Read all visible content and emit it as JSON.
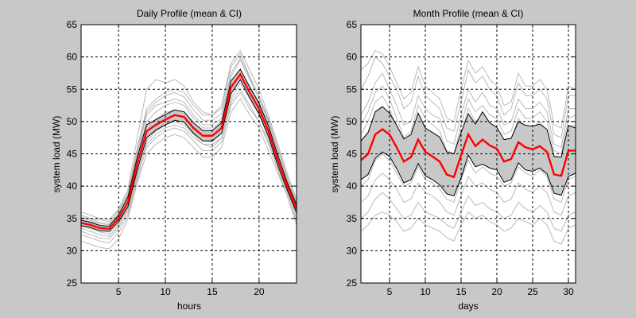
{
  "figure": {
    "background": "#c8c8c8"
  },
  "chart_data": [
    {
      "type": "line",
      "title": "Daily Profile (mean & CI)",
      "xlabel": "hours",
      "ylabel": "system load (MW)",
      "xlim": [
        1,
        24
      ],
      "ylim": [
        25,
        65
      ],
      "xticks": [
        5,
        10,
        15,
        20
      ],
      "yticks": [
        25,
        30,
        35,
        40,
        45,
        50,
        55,
        60,
        65
      ],
      "grid": true,
      "x": [
        1,
        2,
        3,
        4,
        5,
        6,
        7,
        8,
        9,
        10,
        11,
        12,
        13,
        14,
        15,
        16,
        17,
        18,
        19,
        20,
        21,
        22,
        23,
        24
      ],
      "series": [
        {
          "role": "mean",
          "color": "#ff0000",
          "values": [
            34.3,
            34.0,
            33.5,
            33.4,
            35.0,
            37.5,
            43.5,
            48.5,
            49.5,
            50.3,
            51.0,
            50.7,
            49.0,
            47.8,
            47.8,
            49.0,
            55.3,
            57.3,
            54.5,
            52.0,
            48.5,
            44.0,
            40.0,
            36.5
          ]
        },
        {
          "role": "upper_ci",
          "color": "#000000",
          "values": [
            34.7,
            34.4,
            33.9,
            33.8,
            35.5,
            38.3,
            44.5,
            49.5,
            50.3,
            51.1,
            51.8,
            51.5,
            49.8,
            48.6,
            48.6,
            49.8,
            56.3,
            58.1,
            55.3,
            52.8,
            49.3,
            44.8,
            40.6,
            37.1
          ]
        },
        {
          "role": "lower_ci",
          "color": "#000000",
          "values": [
            33.9,
            33.6,
            33.1,
            33.0,
            34.5,
            36.8,
            42.5,
            47.5,
            48.7,
            49.5,
            50.2,
            49.9,
            48.2,
            47.0,
            47.0,
            48.2,
            54.3,
            56.5,
            53.7,
            51.2,
            47.7,
            43.2,
            39.4,
            35.9
          ]
        }
      ],
      "background_curves": {
        "color": "#b8b8b8",
        "values": [
          [
            33.5,
            33.0,
            32.5,
            32.2,
            33.8,
            36.5,
            42.0,
            46.5,
            48.0,
            49.0,
            49.5,
            49.0,
            47.5,
            46.5,
            46.5,
            47.5,
            53.0,
            55.0,
            52.5,
            50.0,
            47.0,
            43.0,
            39.0,
            35.0
          ],
          [
            35.5,
            35.0,
            34.8,
            34.5,
            36.2,
            39.0,
            46.0,
            52.0,
            53.5,
            54.5,
            55.0,
            54.5,
            52.5,
            51.0,
            51.0,
            52.0,
            58.5,
            60.5,
            57.0,
            54.0,
            50.5,
            46.0,
            41.5,
            37.5
          ],
          [
            31.5,
            31.0,
            30.5,
            30.3,
            31.8,
            35.0,
            40.5,
            45.0,
            46.5,
            47.5,
            48.0,
            47.5,
            46.0,
            44.5,
            44.5,
            46.0,
            51.5,
            53.5,
            51.0,
            49.0,
            45.5,
            42.0,
            38.5,
            34.0
          ],
          [
            36.0,
            35.5,
            35.0,
            34.8,
            36.5,
            39.5,
            47.5,
            55.0,
            56.5,
            56.0,
            56.5,
            55.5,
            53.0,
            51.5,
            51.0,
            52.5,
            59.0,
            61.0,
            58.0,
            55.0,
            51.0,
            46.5,
            42.0,
            38.0
          ],
          [
            33.0,
            32.5,
            32.0,
            31.8,
            33.5,
            36.0,
            41.5,
            47.0,
            48.5,
            49.5,
            50.0,
            49.5,
            48.0,
            46.5,
            46.0,
            47.5,
            53.5,
            56.0,
            53.5,
            51.0,
            47.5,
            43.5,
            39.5,
            35.5
          ],
          [
            34.8,
            34.5,
            34.0,
            33.7,
            35.3,
            38.0,
            44.5,
            50.0,
            51.5,
            52.5,
            53.0,
            52.5,
            50.5,
            49.0,
            49.0,
            50.0,
            56.0,
            58.0,
            55.5,
            53.0,
            49.5,
            45.0,
            40.5,
            37.0
          ],
          [
            32.5,
            32.0,
            31.5,
            31.2,
            32.8,
            35.5,
            41.0,
            46.0,
            47.5,
            48.5,
            49.0,
            48.5,
            47.0,
            45.5,
            45.5,
            46.8,
            52.5,
            54.5,
            52.0,
            50.0,
            46.5,
            42.5,
            38.5,
            34.5
          ],
          [
            35.0,
            34.7,
            34.2,
            34.0,
            35.6,
            38.5,
            45.0,
            51.0,
            52.5,
            53.0,
            53.5,
            53.0,
            51.0,
            49.5,
            49.5,
            50.5,
            57.0,
            59.5,
            56.5,
            53.5,
            50.0,
            45.5,
            41.0,
            37.3
          ],
          [
            34.0,
            33.6,
            33.2,
            33.0,
            34.6,
            37.2,
            43.0,
            48.0,
            49.0,
            50.0,
            50.6,
            50.2,
            48.6,
            47.4,
            47.2,
            48.6,
            54.8,
            57.0,
            54.2,
            51.6,
            48.2,
            43.8,
            39.8,
            36.2
          ],
          [
            34.6,
            34.2,
            33.7,
            33.5,
            35.2,
            37.8,
            43.8,
            49.2,
            50.4,
            51.4,
            51.8,
            51.4,
            49.6,
            48.2,
            48.2,
            49.4,
            55.8,
            57.8,
            55.0,
            52.5,
            49.0,
            44.4,
            40.2,
            36.8
          ],
          [
            33.8,
            33.4,
            32.9,
            32.6,
            34.2,
            36.8,
            42.6,
            47.6,
            48.8,
            49.8,
            50.4,
            50.0,
            48.4,
            47.0,
            46.9,
            48.2,
            54.4,
            56.6,
            53.8,
            51.3,
            47.9,
            43.5,
            39.6,
            35.9
          ],
          [
            35.2,
            34.9,
            34.4,
            34.2,
            35.9,
            38.8,
            45.5,
            51.5,
            53.0,
            54.0,
            54.5,
            53.8,
            51.8,
            50.2,
            50.2,
            51.2,
            57.5,
            59.8,
            56.8,
            54.0,
            50.2,
            45.6,
            41.2,
            37.6
          ]
        ]
      }
    },
    {
      "type": "line",
      "title": "Month Profile (mean & CI)",
      "xlabel": "days",
      "ylabel": "system load (MW)",
      "xlim": [
        1,
        31
      ],
      "ylim": [
        25,
        65
      ],
      "xticks": [
        5,
        10,
        15,
        20,
        25,
        30
      ],
      "yticks": [
        25,
        30,
        35,
        40,
        45,
        50,
        55,
        60,
        65
      ],
      "grid": true,
      "x": [
        1,
        2,
        3,
        4,
        5,
        6,
        7,
        8,
        9,
        10,
        11,
        12,
        13,
        14,
        15,
        16,
        17,
        18,
        19,
        20,
        21,
        22,
        23,
        24,
        25,
        26,
        27,
        28,
        29,
        30,
        31
      ],
      "series": [
        {
          "role": "mean",
          "color": "#ff0000",
          "values": [
            44.0,
            45.0,
            48.0,
            48.8,
            48.0,
            46.0,
            43.8,
            44.5,
            47.2,
            45.3,
            44.6,
            43.8,
            41.8,
            41.4,
            44.8,
            48.0,
            46.2,
            47.2,
            46.3,
            45.8,
            43.8,
            44.2,
            46.8,
            46.0,
            45.7,
            46.2,
            45.3,
            41.8,
            41.6,
            45.5,
            45.5
          ]
        },
        {
          "role": "upper_ci",
          "color": "#000000",
          "values": [
            47.0,
            48.3,
            51.5,
            52.3,
            51.3,
            49.4,
            47.3,
            48.0,
            51.3,
            49.0,
            48.3,
            47.6,
            45.3,
            45.0,
            48.3,
            51.2,
            49.6,
            51.5,
            49.8,
            49.1,
            47.2,
            47.4,
            50.0,
            49.4,
            49.3,
            49.6,
            48.8,
            44.6,
            44.5,
            49.4,
            49.0
          ]
        },
        {
          "role": "lower_ci",
          "color": "#000000",
          "values": [
            41.0,
            41.8,
            44.3,
            45.3,
            44.6,
            42.7,
            40.5,
            41.0,
            43.5,
            41.6,
            41.0,
            40.2,
            38.8,
            38.5,
            41.3,
            44.8,
            43.0,
            43.4,
            42.8,
            42.5,
            40.6,
            41.0,
            43.6,
            42.5,
            42.3,
            42.8,
            41.9,
            38.9,
            38.6,
            41.5,
            42.0
          ]
        }
      ],
      "background_curves": {
        "color": "#b8b8b8",
        "values": [
          [
            48.0,
            50.0,
            53.0,
            54.0,
            52.0,
            49.0,
            46.0,
            47.0,
            51.0,
            49.0,
            48.0,
            47.0,
            44.0,
            43.5,
            48.0,
            52.0,
            50.0,
            51.0,
            49.5,
            49.0,
            46.5,
            47.0,
            50.5,
            49.0,
            49.0,
            50.0,
            48.5,
            44.0,
            43.5,
            49.0,
            49.5
          ],
          [
            40.0,
            41.0,
            44.0,
            45.0,
            44.0,
            42.0,
            40.0,
            40.5,
            43.0,
            41.0,
            40.5,
            39.5,
            38.0,
            37.5,
            41.0,
            44.0,
            42.0,
            43.0,
            42.0,
            41.5,
            40.0,
            40.5,
            43.0,
            42.0,
            41.5,
            42.5,
            41.5,
            38.0,
            37.5,
            41.0,
            41.5
          ],
          [
            55.0,
            57.0,
            60.0,
            59.0,
            57.0,
            55.0,
            52.0,
            53.0,
            57.0,
            54.0,
            53.0,
            52.0,
            49.0,
            48.5,
            53.0,
            58.0,
            56.0,
            57.0,
            55.0,
            54.0,
            51.0,
            52.0,
            56.0,
            54.0,
            54.0,
            55.0,
            53.5,
            48.0,
            47.5,
            54.0,
            54.0
          ],
          [
            35.0,
            36.0,
            38.0,
            39.0,
            38.0,
            36.5,
            35.0,
            35.5,
            37.5,
            36.0,
            35.5,
            35.0,
            34.0,
            33.5,
            36.0,
            38.5,
            37.0,
            37.5,
            36.5,
            36.0,
            35.0,
            35.5,
            37.5,
            36.5,
            36.0,
            37.0,
            36.0,
            33.5,
            33.0,
            35.5,
            36.0
          ],
          [
            44.0,
            44.5,
            47.0,
            49.0,
            49.0,
            46.5,
            44.0,
            44.0,
            47.0,
            46.0,
            45.5,
            44.0,
            42.0,
            42.0,
            45.0,
            47.5,
            46.5,
            47.5,
            46.5,
            46.0,
            44.0,
            44.5,
            47.0,
            46.5,
            46.0,
            46.5,
            45.5,
            42.0,
            42.0,
            45.5,
            45.5
          ],
          [
            51.0,
            53.0,
            56.0,
            57.5,
            55.0,
            52.5,
            49.5,
            50.0,
            54.0,
            52.0,
            51.0,
            50.5,
            47.0,
            46.5,
            51.0,
            55.0,
            53.0,
            54.5,
            52.5,
            52.0,
            49.5,
            50.0,
            53.5,
            52.0,
            52.0,
            53.0,
            51.5,
            46.5,
            46.0,
            52.0,
            52.0
          ],
          [
            37.5,
            38.5,
            41.0,
            42.0,
            41.0,
            39.5,
            37.5,
            38.0,
            40.5,
            39.0,
            38.5,
            37.5,
            36.0,
            35.5,
            38.5,
            41.5,
            40.0,
            40.5,
            39.5,
            39.0,
            37.5,
            38.0,
            40.5,
            39.5,
            39.0,
            40.0,
            39.0,
            36.0,
            35.5,
            38.5,
            39.0
          ],
          [
            46.0,
            47.5,
            50.0,
            51.0,
            50.5,
            48.0,
            45.5,
            46.0,
            49.0,
            47.5,
            47.0,
            46.0,
            43.5,
            43.0,
            46.5,
            49.5,
            48.0,
            49.0,
            48.0,
            47.5,
            45.5,
            46.0,
            48.5,
            48.0,
            47.5,
            48.0,
            47.0,
            43.5,
            43.0,
            47.0,
            47.0
          ],
          [
            42.0,
            43.0,
            45.5,
            46.5,
            46.0,
            44.0,
            42.0,
            42.5,
            45.0,
            43.5,
            43.0,
            42.0,
            40.0,
            39.5,
            43.0,
            46.0,
            44.5,
            45.0,
            44.0,
            43.5,
            42.0,
            42.5,
            45.0,
            44.0,
            43.5,
            44.5,
            43.5,
            40.0,
            39.5,
            43.5,
            43.5
          ],
          [
            33.0,
            34.0,
            35.5,
            36.0,
            35.5,
            34.5,
            33.0,
            33.5,
            35.0,
            34.0,
            33.5,
            33.0,
            32.0,
            31.5,
            34.0,
            36.0,
            35.0,
            35.5,
            34.5,
            34.0,
            33.0,
            33.5,
            35.0,
            34.5,
            34.0,
            35.0,
            34.0,
            31.5,
            31.0,
            33.5,
            34.0
          ],
          [
            58.0,
            59.0,
            61.0,
            60.5,
            58.5,
            56.0,
            53.5,
            54.5,
            58.5,
            55.5,
            54.5,
            53.5,
            50.5,
            50.0,
            55.0,
            59.5,
            57.5,
            58.5,
            56.5,
            55.5,
            52.5,
            53.0,
            57.5,
            55.5,
            55.5,
            56.5,
            55.0,
            49.5,
            49.0,
            55.5,
            55.0
          ],
          [
            49.5,
            51.5,
            54.5,
            55.5,
            53.5,
            50.5,
            47.5,
            48.5,
            52.5,
            50.5,
            49.5,
            48.5,
            45.5,
            45.0,
            49.5,
            53.5,
            51.5,
            52.5,
            51.0,
            50.5,
            48.0,
            48.5,
            52.0,
            50.5,
            50.5,
            51.5,
            50.0,
            45.5,
            45.0,
            50.5,
            51.0
          ]
        ]
      }
    }
  ]
}
